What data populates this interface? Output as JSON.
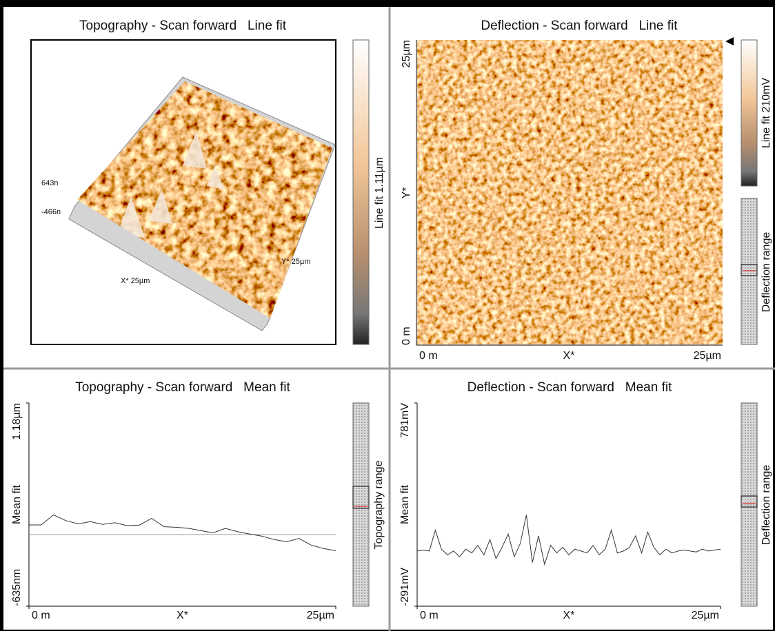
{
  "panels": [
    {
      "title": "Topography - Scan forward   Line fit",
      "z_labels": [
        "643n",
        "-466n"
      ],
      "x_label": "X* 25µm",
      "y_label": "Y* 25µm",
      "colorbar_label": "Line fit 1.11µm"
    },
    {
      "title": "Deflection - Scan forward   Line fit",
      "y_axis": [
        "25µm",
        "Y*",
        "0 m"
      ],
      "x_axis": [
        "0 m",
        "X*",
        "25µm"
      ],
      "colorbar_label": "Line fit 210mV",
      "range_label": "Deflection range"
    },
    {
      "title": "Topography - Scan forward   Mean fit",
      "range_label": "Topography range",
      "chart": {
        "type": "line",
        "xlabel": "X*",
        "ylabel": "Mean fit",
        "color": "#333333",
        "xlim": [
          0,
          25
        ],
        "xticks": [
          {
            "value": 0,
            "label": "0 m"
          },
          {
            "value": 25,
            "label": "25µm"
          }
        ],
        "ylim": [
          -635,
          1180
        ],
        "yticks": [
          {
            "value": -635,
            "label": "-635nm"
          },
          {
            "value": 1180,
            "label": "1.18µm"
          }
        ],
        "x": [
          0,
          1,
          2,
          3,
          4,
          5,
          6,
          7,
          8,
          9,
          10,
          11,
          12,
          13,
          14,
          15,
          16,
          17,
          18,
          19,
          20,
          21,
          22,
          23,
          24,
          25
        ],
        "values": [
          91,
          91,
          180,
          130,
          100,
          120,
          95,
          110,
          85,
          90,
          150,
          75,
          70,
          60,
          40,
          20,
          60,
          30,
          10,
          -10,
          -40,
          -60,
          -30,
          -90,
          -120,
          -140
        ]
      }
    },
    {
      "title": "Deflection - Scan forward   Mean fit",
      "range_label": "Deflection range",
      "chart": {
        "type": "line",
        "xlabel": "X*",
        "ylabel": "Mean fit",
        "color": "#333333",
        "xlim": [
          0,
          25
        ],
        "xticks": [
          {
            "value": 0,
            "label": "0 m"
          },
          {
            "value": 25,
            "label": "25µm"
          }
        ],
        "ylim": [
          -291,
          781
        ],
        "yticks": [
          {
            "value": -291,
            "label": "-291mV"
          },
          {
            "value": 781,
            "label": "781mV"
          }
        ],
        "x": [
          0,
          0.5,
          1,
          1.5,
          2,
          2.5,
          3,
          3.5,
          4,
          4.5,
          5,
          5.5,
          6,
          6.5,
          7,
          7.5,
          8,
          8.5,
          9,
          9.5,
          10,
          10.5,
          11,
          11.5,
          12,
          12.5,
          13,
          13.5,
          14,
          14.5,
          15,
          15.5,
          16,
          16.5,
          17,
          17.5,
          18,
          18.5,
          19,
          19.5,
          20,
          20.5,
          21,
          21.5,
          22,
          22.5,
          23,
          23.5,
          24,
          24.5,
          25
        ],
        "values": [
          0,
          5,
          0,
          110,
          10,
          -20,
          0,
          -30,
          10,
          -10,
          30,
          -20,
          60,
          -40,
          20,
          90,
          -30,
          40,
          190,
          -60,
          80,
          -70,
          30,
          -10,
          20,
          -20,
          10,
          0,
          -10,
          30,
          -20,
          10,
          110,
          -10,
          0,
          20,
          80,
          -10,
          100,
          20,
          -20,
          10,
          -10,
          0,
          5,
          0,
          -5,
          10,
          0,
          5,
          10
        ]
      }
    }
  ]
}
